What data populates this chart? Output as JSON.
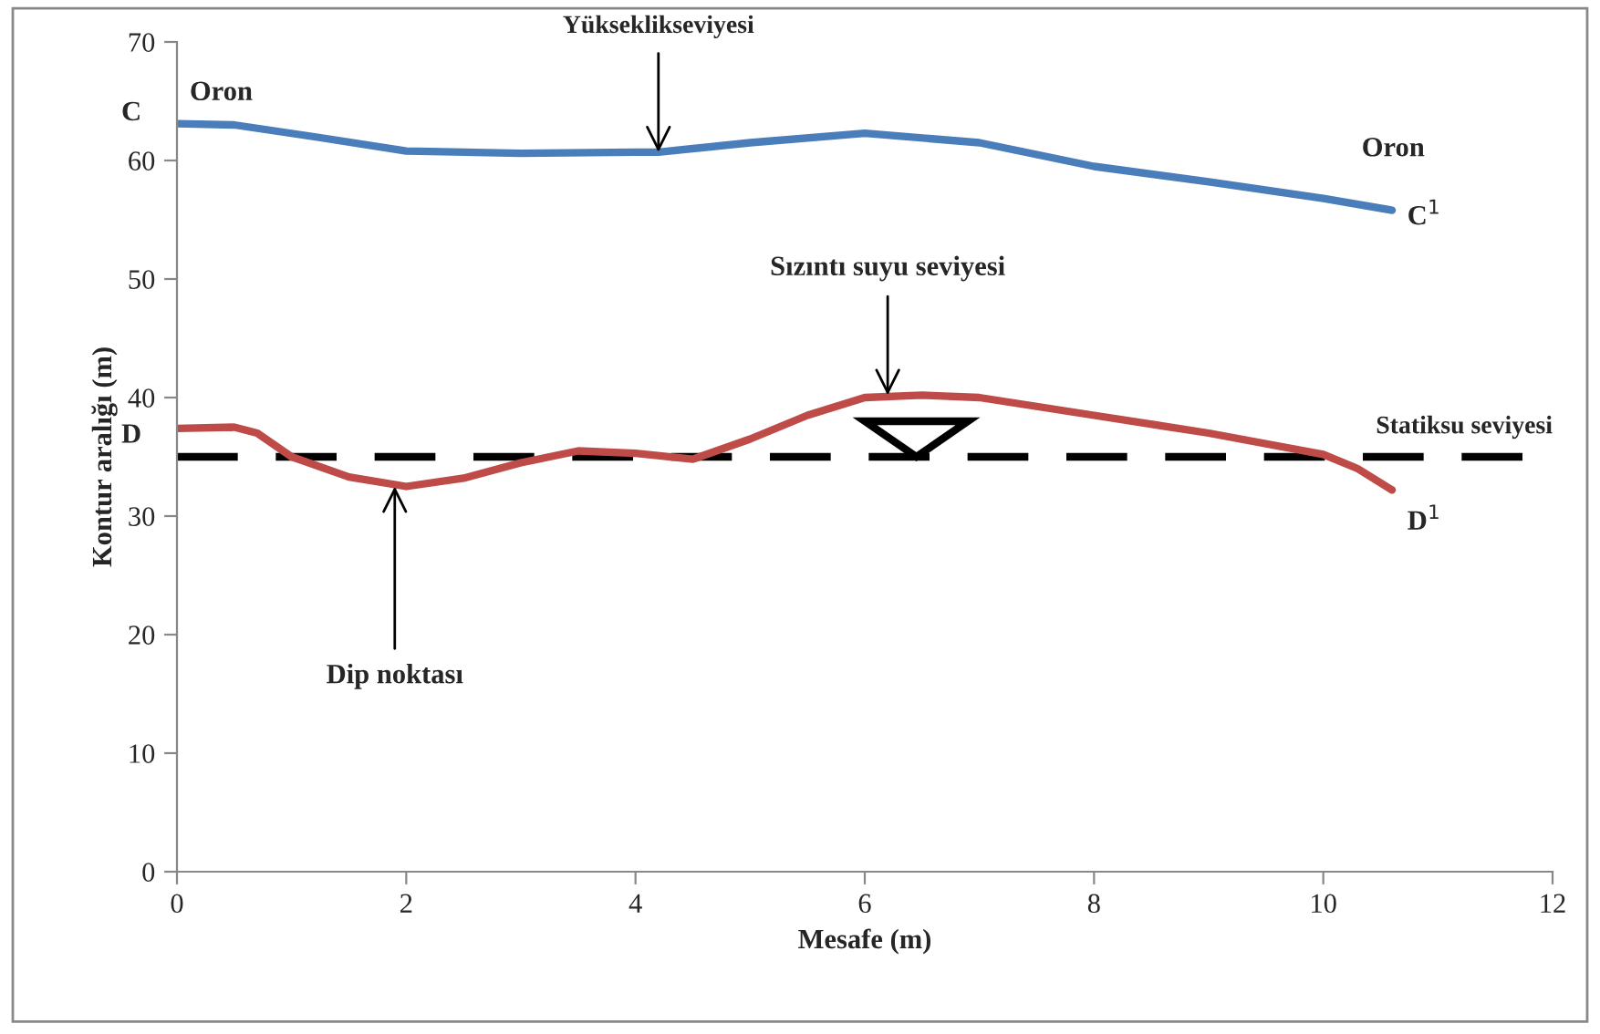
{
  "chart_data": {
    "type": "line",
    "xlabel": "Mesafe (m)",
    "ylabel": "Kontur aralığı (m)",
    "xlim": [
      0,
      12
    ],
    "xticks": [
      0,
      2,
      4,
      6,
      8,
      10,
      12
    ],
    "ylim": [
      0,
      70
    ],
    "yticks": [
      0,
      10,
      20,
      30,
      40,
      50,
      60,
      70
    ],
    "grid": false,
    "legend": false,
    "marker": "none",
    "line_style": "solid",
    "series": [
      {
        "color": "#4a7ebb",
        "x": [
          0,
          0.5,
          1.2,
          2,
          3,
          4,
          4.2,
          5,
          6,
          7,
          8,
          9,
          10,
          10.6
        ],
        "values": [
          63.1,
          63,
          62,
          60.8,
          60.6,
          60.7,
          60.7,
          61.5,
          62.3,
          61.5,
          59.5,
          58.2,
          56.8,
          55.8
        ]
      },
      {
        "color": "#be4b48",
        "x": [
          0,
          0.5,
          0.7,
          1,
          1.5,
          2,
          2.5,
          3,
          3.5,
          4,
          4.5,
          5,
          5.5,
          6,
          6.5,
          7,
          8,
          9,
          10,
          10.3,
          10.6
        ],
        "values": [
          37.4,
          37.5,
          37,
          35,
          33.3,
          32.5,
          33.2,
          34.5,
          35.5,
          35.3,
          34.8,
          36.5,
          38.5,
          40,
          40.2,
          40,
          38.5,
          37,
          35.2,
          34,
          32.2
        ]
      }
    ],
    "ref_lines": [
      {
        "axis": "y",
        "value": 35,
        "label": "Statiksu seviyesi",
        "color": "#000000",
        "line_style": "dashed"
      }
    ],
    "annotations": [
      {
        "text": "C",
        "x": 0,
        "y": 63.1
      },
      {
        "text": "Oron",
        "x": 0,
        "y": 63.1
      },
      {
        "text": "Oron",
        "x": 10.6,
        "y": 55.8
      },
      {
        "text": "C$^{1}$",
        "x": 10.6,
        "y": 55.8
      },
      {
        "text": "D",
        "x": 0,
        "y": 37.4
      },
      {
        "text": "D$^{1}$",
        "x": 10.6,
        "y": 32.2
      },
      {
        "text": "Yükseklikseviyesi",
        "x": 4.2,
        "y": 60.7
      },
      {
        "text": "Sızıntı suyu seviyesi",
        "x": 6.2,
        "y": 40.2
      },
      {
        "text": "Dip noktası",
        "x": 1.9,
        "y": 32.5
      }
    ]
  }
}
